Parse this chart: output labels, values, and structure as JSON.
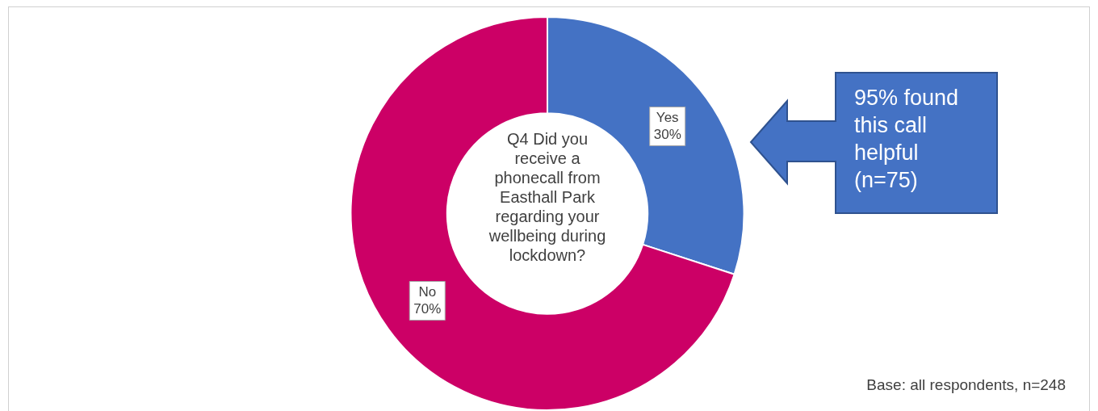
{
  "chart_data": {
    "type": "donut",
    "title": "Q4 Did you receive a phonecall from Easthall Park regarding your wellbeing during lockdown?",
    "categories": [
      "Yes",
      "No"
    ],
    "values": [
      30,
      70
    ],
    "colors": [
      "#4472c4",
      "#cc0066"
    ],
    "value_labels": [
      "30%",
      "70%"
    ],
    "legend": false,
    "annotations": [
      "95% found this call helpful (n=75)",
      "Base: all respondents, n=248"
    ]
  }
}
